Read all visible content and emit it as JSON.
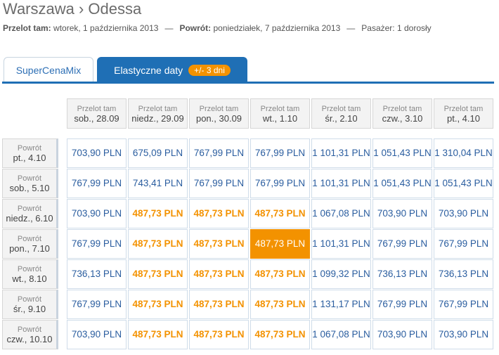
{
  "header": {
    "title": "Warszawa › Odessa",
    "subtitle": {
      "outbound_label": "Przelot tam:",
      "outbound_value": "wtorek, 1 października 2013",
      "separator": "—",
      "return_label": "Powrót:",
      "return_value": "poniedziałek, 7 października 2013",
      "passenger_label": "Pasażer:",
      "passenger_value": "1 dorosły"
    }
  },
  "tabs": [
    {
      "label": "SuperCenaMix",
      "active": false
    },
    {
      "label": "Elastyczne daty",
      "badge": "+/- 3 dni",
      "active": true
    }
  ],
  "table": {
    "columns": [
      {
        "label": "Przelot tam",
        "date": "sob., 28.09"
      },
      {
        "label": "Przelot tam",
        "date": "niedz., 29.09"
      },
      {
        "label": "Przelot tam",
        "date": "pon., 30.09"
      },
      {
        "label": "Przelot tam",
        "date": "wt., 1.10"
      },
      {
        "label": "Przelot tam",
        "date": "śr., 2.10"
      },
      {
        "label": "Przelot tam",
        "date": "czw., 3.10"
      },
      {
        "label": "Przelot tam",
        "date": "pt., 4.10"
      }
    ],
    "rows": [
      {
        "label": "Powrót",
        "date": "pt., 4.10",
        "cells": [
          {
            "price": "703,90 PLN",
            "style": "normal"
          },
          {
            "price": "675,09 PLN",
            "style": "normal"
          },
          {
            "price": "767,99 PLN",
            "style": "normal"
          },
          {
            "price": "767,99 PLN",
            "style": "normal"
          },
          {
            "price": "1 101,31 PLN",
            "style": "normal"
          },
          {
            "price": "1 051,43 PLN",
            "style": "normal"
          },
          {
            "price": "1 310,04 PLN",
            "style": "normal"
          }
        ]
      },
      {
        "label": "Powrót",
        "date": "sob., 5.10",
        "cells": [
          {
            "price": "767,99 PLN",
            "style": "normal"
          },
          {
            "price": "743,41 PLN",
            "style": "normal"
          },
          {
            "price": "767,99 PLN",
            "style": "normal"
          },
          {
            "price": "767,99 PLN",
            "style": "normal"
          },
          {
            "price": "1 101,31 PLN",
            "style": "normal"
          },
          {
            "price": "1 051,43 PLN",
            "style": "normal"
          },
          {
            "price": "1 051,43 PLN",
            "style": "normal"
          }
        ]
      },
      {
        "label": "Powrót",
        "date": "niedz., 6.10",
        "cells": [
          {
            "price": "703,90 PLN",
            "style": "normal"
          },
          {
            "price": "487,73 PLN",
            "style": "cheapest"
          },
          {
            "price": "487,73 PLN",
            "style": "cheapest"
          },
          {
            "price": "487,73 PLN",
            "style": "cheapest"
          },
          {
            "price": "1 067,08 PLN",
            "style": "normal"
          },
          {
            "price": "703,90 PLN",
            "style": "normal"
          },
          {
            "price": "703,90 PLN",
            "style": "normal"
          }
        ]
      },
      {
        "label": "Powrót",
        "date": "pon., 7.10",
        "cells": [
          {
            "price": "767,99 PLN",
            "style": "normal"
          },
          {
            "price": "487,73 PLN",
            "style": "cheapest"
          },
          {
            "price": "487,73 PLN",
            "style": "cheapest"
          },
          {
            "price": "487,73 PLN",
            "style": "selected"
          },
          {
            "price": "1 101,31 PLN",
            "style": "normal"
          },
          {
            "price": "767,99 PLN",
            "style": "normal"
          },
          {
            "price": "767,99 PLN",
            "style": "normal"
          }
        ]
      },
      {
        "label": "Powrót",
        "date": "wt., 8.10",
        "cells": [
          {
            "price": "736,13 PLN",
            "style": "normal"
          },
          {
            "price": "487,73 PLN",
            "style": "cheapest"
          },
          {
            "price": "487,73 PLN",
            "style": "cheapest"
          },
          {
            "price": "487,73 PLN",
            "style": "cheapest"
          },
          {
            "price": "1 099,32 PLN",
            "style": "normal"
          },
          {
            "price": "736,13 PLN",
            "style": "normal"
          },
          {
            "price": "736,13 PLN",
            "style": "normal"
          }
        ]
      },
      {
        "label": "Powrót",
        "date": "śr., 9.10",
        "cells": [
          {
            "price": "767,99 PLN",
            "style": "normal"
          },
          {
            "price": "487,73 PLN",
            "style": "cheapest"
          },
          {
            "price": "487,73 PLN",
            "style": "cheapest"
          },
          {
            "price": "487,73 PLN",
            "style": "cheapest"
          },
          {
            "price": "1 131,17 PLN",
            "style": "normal"
          },
          {
            "price": "767,99 PLN",
            "style": "normal"
          },
          {
            "price": "767,99 PLN",
            "style": "normal"
          }
        ]
      },
      {
        "label": "Powrót",
        "date": "czw., 10.10",
        "cells": [
          {
            "price": "703,90 PLN",
            "style": "normal"
          },
          {
            "price": "487,73 PLN",
            "style": "cheapest"
          },
          {
            "price": "487,73 PLN",
            "style": "cheapest"
          },
          {
            "price": "487,73 PLN",
            "style": "cheapest"
          },
          {
            "price": "1 067,08 PLN",
            "style": "normal"
          },
          {
            "price": "703,90 PLN",
            "style": "normal"
          },
          {
            "price": "703,90 PLN",
            "style": "normal"
          }
        ]
      }
    ]
  }
}
